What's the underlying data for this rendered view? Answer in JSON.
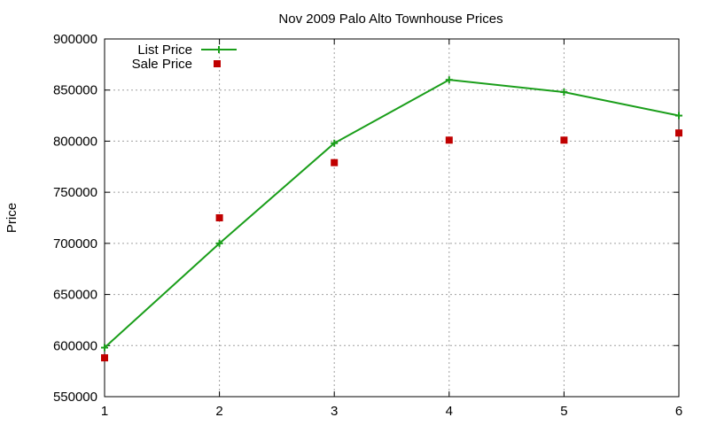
{
  "chart_data": {
    "type": "line",
    "title": "Nov 2009 Palo Alto Townhouse Prices",
    "xlabel": "",
    "ylabel": "Price",
    "x": [
      1,
      2,
      3,
      4,
      5,
      6
    ],
    "xlim": [
      1,
      6
    ],
    "ylim": [
      550000,
      900000
    ],
    "xticks": [
      "1",
      "2",
      "3",
      "4",
      "5",
      "6"
    ],
    "yticks": [
      "550000",
      "600000",
      "650000",
      "700000",
      "750000",
      "800000",
      "850000",
      "900000"
    ],
    "ytick_values": [
      550000,
      600000,
      650000,
      700000,
      750000,
      800000,
      850000,
      900000
    ],
    "grid": true,
    "legend_position": "top-left",
    "series": [
      {
        "name": "List Price",
        "style": "line-with-plus-markers",
        "color": "#1a9e1a",
        "values": [
          598000,
          700000,
          798000,
          860000,
          848000,
          825000
        ]
      },
      {
        "name": "Sale Price",
        "style": "square-markers",
        "color": "#c00000",
        "values": [
          588000,
          725000,
          779000,
          801000,
          801000,
          808000
        ]
      }
    ]
  }
}
